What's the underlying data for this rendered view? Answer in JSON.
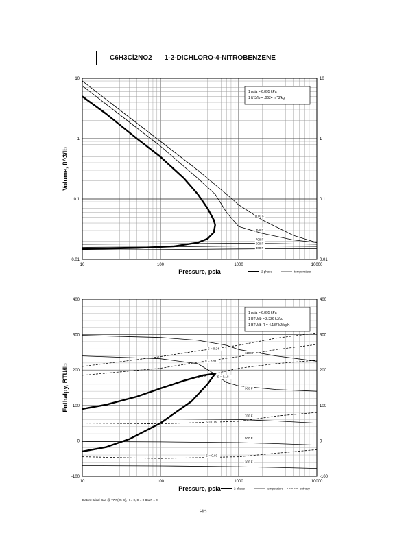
{
  "title": {
    "formula": "C6H3Cl2NO2",
    "name": "1-2-DICHLORO-4-NITROBENZENE"
  },
  "page_number": "96",
  "chart_data": [
    {
      "type": "line",
      "xlabel": "Pressure,  psia",
      "ylabel": "Volume, ft^3/lb",
      "xscale": "log",
      "yscale": "log",
      "xlim": [
        10,
        10000
      ],
      "ylim": [
        0.01,
        10
      ],
      "x_tick_labels": [
        "10",
        "100",
        "1000",
        "10000"
      ],
      "y_tick_labels": [
        "0.01",
        "0.1",
        "1",
        "10"
      ],
      "y_ticks": [
        0.01,
        0.1,
        1,
        10
      ],
      "grid": true,
      "legend": [
        "2 phase",
        "temperature"
      ],
      "legend_position": "bottom-right",
      "conversion_notes": [
        "1 psia = 6.895 kPa",
        "1 ft^3/lb = .0624 m^3/kg"
      ],
      "series": [
        {
          "name": "2 phase",
          "points": [
            [
              10,
              5.0
            ],
            [
              20,
              2.6
            ],
            [
              50,
              1.0
            ],
            [
              100,
              0.5
            ],
            [
              200,
              0.22
            ],
            [
              300,
              0.12
            ],
            [
              400,
              0.07
            ],
            [
              480,
              0.045
            ],
            [
              500,
              0.037
            ],
            [
              480,
              0.028
            ],
            [
              400,
              0.022
            ],
            [
              300,
              0.019
            ],
            [
              150,
              0.0165
            ],
            [
              50,
              0.0155
            ],
            [
              10,
              0.0148
            ]
          ]
        },
        {
          "name": "1100 F",
          "points": [
            [
              10,
              9.0
            ],
            [
              30,
              3.0
            ],
            [
              100,
              0.9
            ],
            [
              300,
              0.3
            ],
            [
              700,
              0.12
            ],
            [
              1000,
              0.08
            ],
            [
              2000,
              0.045
            ],
            [
              5000,
              0.025
            ],
            [
              10000,
              0.019
            ]
          ]
        },
        {
          "name": "900 F",
          "points": [
            [
              10,
              7.5
            ],
            [
              30,
              2.5
            ],
            [
              100,
              0.75
            ],
            [
              300,
              0.22
            ],
            [
              500,
              0.12
            ],
            [
              700,
              0.06
            ],
            [
              1000,
              0.035
            ],
            [
              2000,
              0.027
            ],
            [
              5000,
              0.021
            ],
            [
              10000,
              0.019
            ]
          ]
        },
        {
          "name": "700 F",
          "points": [
            [
              10,
              0.0178
            ],
            [
              100,
              0.0181
            ],
            [
              1000,
              0.0185
            ],
            [
              3000,
              0.0183
            ],
            [
              10000,
              0.0178
            ]
          ]
        },
        {
          "name": "500 F",
          "points": [
            [
              10,
              0.0158
            ],
            [
              100,
              0.0161
            ],
            [
              1000,
              0.0166
            ],
            [
              3000,
              0.0166
            ],
            [
              10000,
              0.0164
            ]
          ]
        },
        {
          "name": "300 F",
          "points": [
            [
              10,
              0.0143
            ],
            [
              100,
              0.0145
            ],
            [
              1000,
              0.0149
            ],
            [
              3000,
              0.015
            ],
            [
              10000,
              0.015
            ]
          ]
        }
      ],
      "curve_labels": [
        {
          "text": "1100 F",
          "x": 1600,
          "y": 0.05
        },
        {
          "text": "900 F",
          "x": 1650,
          "y": 0.03
        },
        {
          "text": "700 F",
          "x": 1650,
          "y": 0.0205
        },
        {
          "text": "500 F",
          "x": 1650,
          "y": 0.0175
        },
        {
          "text": "300 F",
          "x": 1650,
          "y": 0.0148
        }
      ]
    },
    {
      "type": "line",
      "xlabel": "Pressure,  psia",
      "ylabel": "Enthalpy, BTU/lb",
      "xscale": "log",
      "yscale": "linear",
      "xlim": [
        10,
        10000
      ],
      "ylim": [
        -100,
        400
      ],
      "x_tick_labels": [
        "10",
        "100",
        "1000",
        "10000"
      ],
      "y_ticks": [
        -100,
        0,
        100,
        200,
        300,
        400
      ],
      "y_tick_labels": [
        "-100",
        "0",
        "100",
        "200",
        "300",
        "400"
      ],
      "grid": true,
      "legend": [
        "2 phase",
        "temperature",
        "entropy"
      ],
      "legend_position": "bottom-right",
      "conversion_notes": [
        "1 psia = 6.895 kPa",
        "1 BTU/lb = 2.326 kJ/kg",
        "1 BTU/lb R = 4.187 kJ/kg K"
      ],
      "footnote": "Datum: Ideal Gas @ 77 F(25 C),  H = 0,  S = 0 Btu F = 0",
      "series": [
        {
          "name": "2 phase",
          "points": [
            [
              10,
              90
            ],
            [
              20,
              102
            ],
            [
              50,
              125
            ],
            [
              100,
              148
            ],
            [
              200,
              170
            ],
            [
              350,
              185
            ],
            [
              500,
              190
            ],
            [
              400,
              160
            ],
            [
              250,
              112
            ],
            [
              100,
              50
            ],
            [
              40,
              5
            ],
            [
              20,
              -18
            ],
            [
              10,
              -30
            ]
          ]
        },
        {
          "name": "1100 F",
          "points": [
            [
              10,
              298
            ],
            [
              100,
              292
            ],
            [
              300,
              284
            ],
            [
              700,
              270
            ],
            [
              1000,
              258
            ],
            [
              3000,
              240
            ],
            [
              10000,
              225
            ]
          ]
        },
        {
          "name": "900 F",
          "points": [
            [
              10,
              240
            ],
            [
              100,
              232
            ],
            [
              300,
              218
            ],
            [
              500,
              188
            ],
            [
              700,
              165
            ],
            [
              1000,
              155
            ],
            [
              3000,
              145
            ],
            [
              10000,
              140
            ]
          ]
        },
        {
          "name": "700 F",
          "points": [
            [
              10,
              62
            ],
            [
              100,
              62
            ],
            [
              1000,
              60
            ],
            [
              3000,
              56
            ],
            [
              10000,
              50
            ]
          ]
        },
        {
          "name": "500 F",
          "points": [
            [
              10,
              -2
            ],
            [
              100,
              -3
            ],
            [
              1000,
              -5
            ],
            [
              3000,
              -8
            ],
            [
              10000,
              -12
            ]
          ]
        },
        {
          "name": "300 F",
          "points": [
            [
              10,
              -70
            ],
            [
              100,
              -71
            ],
            [
              1000,
              -73
            ],
            [
              3000,
              -75
            ],
            [
              10000,
              -78
            ]
          ]
        },
        {
          "name": "S = 0.24",
          "style": "dashed",
          "points": [
            [
              10,
              210
            ],
            [
              100,
              238
            ],
            [
              300,
              254
            ],
            [
              1000,
              270
            ],
            [
              3000,
              290
            ],
            [
              10000,
              305
            ]
          ]
        },
        {
          "name": "S = 0.21",
          "style": "dashed",
          "points": [
            [
              10,
              185
            ],
            [
              100,
              205
            ],
            [
              300,
              222
            ],
            [
              1000,
              238
            ],
            [
              3000,
              258
            ],
            [
              10000,
              272
            ]
          ]
        },
        {
          "name": "S = 0.18",
          "style": "dashed",
          "points": [
            [
              300,
              178
            ],
            [
              500,
              190
            ],
            [
              1000,
              205
            ],
            [
              3000,
              218
            ],
            [
              10000,
              228
            ]
          ]
        },
        {
          "name": "S = 0.09",
          "style": "dashed",
          "points": [
            [
              10,
              50
            ],
            [
              100,
              48
            ],
            [
              1000,
              55
            ],
            [
              3000,
              70
            ],
            [
              10000,
              80
            ]
          ]
        },
        {
          "name": "S = 0.03",
          "style": "dashed",
          "points": [
            [
              10,
              -45
            ],
            [
              100,
              -50
            ],
            [
              1000,
              -45
            ],
            [
              3000,
              -35
            ],
            [
              10000,
              -25
            ]
          ]
        }
      ],
      "curve_labels": [
        {
          "text": "S = 0.24",
          "x": 400,
          "y": 258
        },
        {
          "text": "S = 0.21",
          "x": 370,
          "y": 222
        },
        {
          "text": "S = 0.18",
          "x": 530,
          "y": 178
        },
        {
          "text": "S = 0.09",
          "x": 380,
          "y": 50
        },
        {
          "text": "S = 0.03",
          "x": 380,
          "y": -45
        },
        {
          "text": "1100 F",
          "x": 1200,
          "y": 245
        },
        {
          "text": "900 F",
          "x": 1200,
          "y": 145
        },
        {
          "text": "700 F",
          "x": 1200,
          "y": 68
        },
        {
          "text": "500 F",
          "x": 1200,
          "y": 5
        },
        {
          "text": "300 F",
          "x": 1200,
          "y": -62
        }
      ]
    }
  ]
}
